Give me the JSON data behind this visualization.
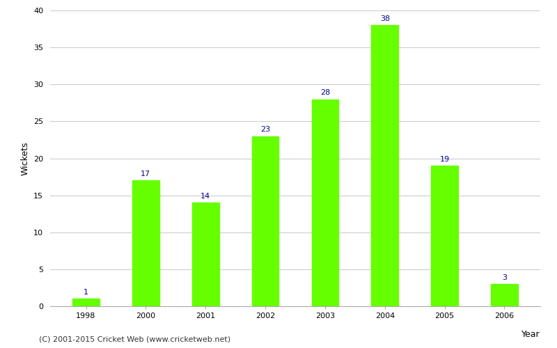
{
  "categories": [
    "1998",
    "2000",
    "2001",
    "2002",
    "2003",
    "2004",
    "2005",
    "2006"
  ],
  "values": [
    1,
    17,
    14,
    23,
    28,
    38,
    19,
    3
  ],
  "bar_color": "#66ff00",
  "bar_edge_color": "#66ff00",
  "label_color": "#000099",
  "xlabel": "Year",
  "ylabel": "Wickets",
  "ylim": [
    0,
    40
  ],
  "yticks": [
    0,
    5,
    10,
    15,
    20,
    25,
    30,
    35,
    40
  ],
  "grid_color": "#cccccc",
  "background_color": "#ffffff",
  "label_fontsize": 8,
  "axis_label_fontsize": 9,
  "bar_width": 0.45,
  "footer_text": "(C) 2001-2015 Cricket Web (www.cricketweb.net)",
  "footer_fontsize": 8
}
